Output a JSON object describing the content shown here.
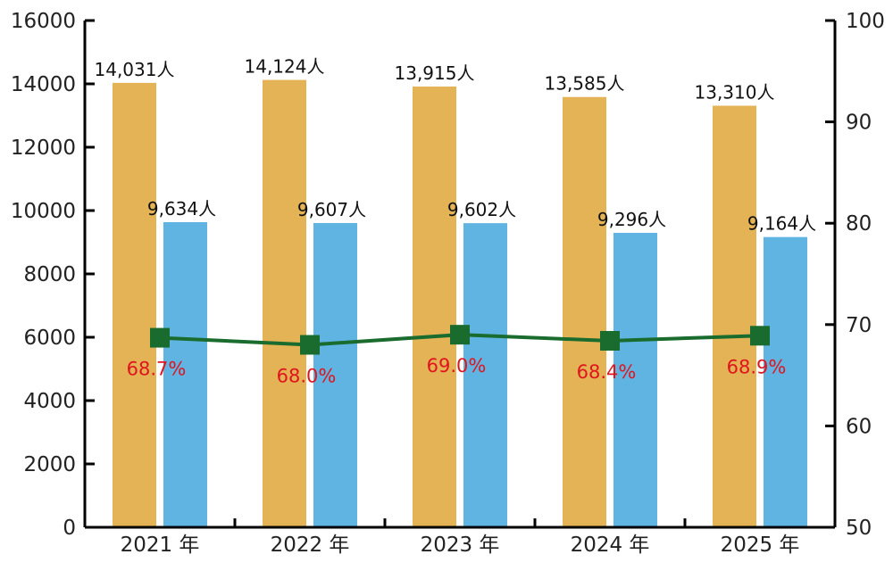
{
  "chart_data": {
    "type": "bar",
    "categories": [
      "2021 年",
      "2022 年",
      "2023 年",
      "2024 年",
      "2025 年"
    ],
    "series": [
      {
        "type": "bar",
        "axis": "left",
        "color": "#E3B356",
        "values": [
          14031,
          14124,
          13915,
          13585,
          13310
        ],
        "labels": [
          "14,031人",
          "14,124人",
          "13,915人",
          "13,585人",
          "13,310人"
        ]
      },
      {
        "type": "bar",
        "axis": "left",
        "color": "#5FB4E2",
        "values": [
          9634,
          9607,
          9602,
          9296,
          9164
        ],
        "labels": [
          "9,634人",
          "9,607人",
          "9,602人",
          "9,296人",
          "9,164人"
        ]
      },
      {
        "type": "line",
        "axis": "right",
        "color": "#1A6B2E",
        "label_color": "#E0141E",
        "marker": "square",
        "values": [
          68.7,
          68.0,
          69.0,
          68.4,
          68.9
        ],
        "labels": [
          "68.7%",
          "68.0%",
          "69.0%",
          "68.4%",
          "68.9%"
        ]
      }
    ],
    "y_left": {
      "min": 0,
      "max": 16000,
      "ticks": [
        "0",
        "2000",
        "4000",
        "6000",
        "8000",
        "10000",
        "12000",
        "14000",
        "16000"
      ]
    },
    "y_right": {
      "min": 50,
      "max": 100,
      "ticks": [
        "50",
        "60",
        "70",
        "80",
        "90",
        "100"
      ]
    },
    "grid": false,
    "legend": "none"
  }
}
